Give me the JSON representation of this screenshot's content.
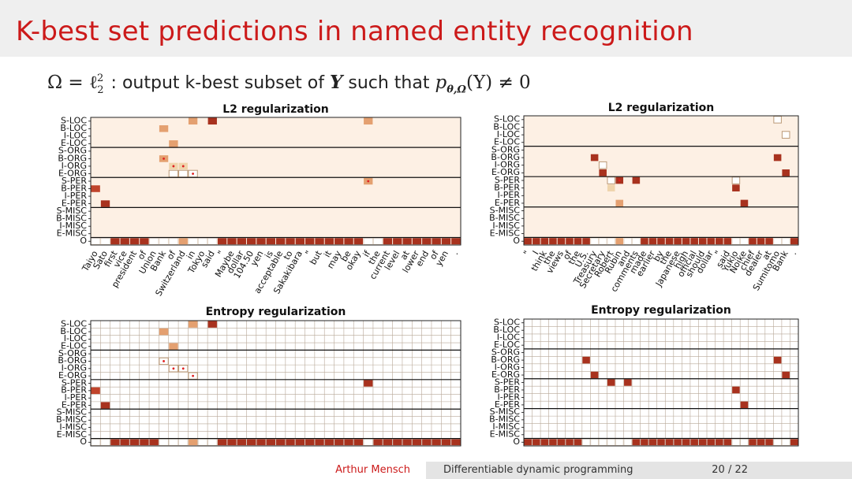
{
  "slide": {
    "title": "K-best set predictions in named entity recognition",
    "formula_lead": "Ω = ℓ",
    "formula_sup": "2",
    "formula_sub": "2",
    "formula_text": ": output k-best subset of ",
    "formula_Y": "Y",
    "formula_mid": " such that ",
    "formula_p": "p",
    "formula_p_sub": "θ,Ω",
    "formula_tail": "(Y) ≠ 0",
    "footer_author": "Arthur Mensch",
    "footer_talk": "Differentiable dynamic programming",
    "footer_page": "20 / 22"
  },
  "colors": {
    "title": "#cc1a1a",
    "cell_bg_dense": "#fdf0e4",
    "dark": "#a8321e",
    "mid": "#c0442c",
    "light": "#e4a070",
    "pale": "#efd4ac",
    "outline": "#bb9977",
    "dot": "#e02020"
  },
  "tags": [
    "S-LOC",
    "B-LOC",
    "I-LOC",
    "E-LOC",
    "S-ORG",
    "B-ORG",
    "I-ORG",
    "E-ORG",
    "S-PER",
    "B-PER",
    "I-PER",
    "E-PER",
    "S-MISC",
    "B-MISC",
    "I-MISC",
    "E-MISC",
    "O"
  ],
  "charts": [
    {
      "title": "L2 regularization",
      "style": "dense",
      "words": [
        "Taiyo",
        "Sato",
        "first",
        "vice",
        "president",
        "of",
        "Union",
        "Bank",
        "of",
        "Switzerland",
        "in",
        "Tokyo",
        "said",
        "\"",
        "Maybe",
        "dollar",
        "104.50",
        "yen",
        "is",
        "acceptable",
        "to",
        "Sakakibara",
        "\"",
        "but",
        "it",
        "may",
        "be",
        "okay",
        "if",
        "the",
        "current",
        "level",
        "at",
        "lower",
        "end",
        "of",
        "yen",
        "."
      ],
      "cells": [
        {
          "r": 0,
          "c": 10,
          "t": "light"
        },
        {
          "r": 0,
          "c": 12,
          "t": "dark"
        },
        {
          "r": 0,
          "c": 28,
          "t": "light"
        },
        {
          "r": 1,
          "c": 7,
          "t": "light"
        },
        {
          "r": 3,
          "c": 8,
          "t": "light"
        },
        {
          "r": 5,
          "c": 7,
          "t": "light",
          "dot": true
        },
        {
          "r": 6,
          "c": 8,
          "t": "pale",
          "dot": true
        },
        {
          "r": 6,
          "c": 9,
          "t": "pale",
          "dot": true
        },
        {
          "r": 7,
          "c": 8,
          "t": "white"
        },
        {
          "r": 7,
          "c": 9,
          "t": "white"
        },
        {
          "r": 7,
          "c": 10,
          "t": "white",
          "dot": true
        },
        {
          "r": 8,
          "c": 28,
          "t": "light",
          "dot": true
        },
        {
          "r": 9,
          "c": 0,
          "t": "mid"
        },
        {
          "r": 11,
          "c": 1,
          "t": "dark"
        }
      ],
      "o_skip": [
        {
          "c": 0,
          "t": "white"
        },
        {
          "c": 1,
          "t": "white"
        },
        {
          "c": 6,
          "t": "white"
        },
        {
          "c": 7,
          "t": "white"
        },
        {
          "c": 8,
          "t": "white"
        },
        {
          "c": 9,
          "t": "light"
        },
        {
          "c": 10,
          "t": "white"
        },
        {
          "c": 11,
          "t": "white"
        },
        {
          "c": 12,
          "t": "white"
        },
        {
          "c": 28,
          "t": "white"
        },
        {
          "c": 29,
          "t": "white"
        }
      ]
    },
    {
      "title": "L2 regularization",
      "style": "dense",
      "words": [
        "\"",
        "I",
        "think",
        "the",
        "views",
        "of",
        "the",
        "U.S.",
        "Treasury",
        "Secretary",
        "Robert",
        "Rubin",
        "and",
        "comments",
        "made",
        "earlier",
        "by",
        "the",
        "Japanese",
        "high",
        "official",
        "should",
        "dollar",
        "\"",
        "said",
        "Yukio",
        "Noike",
        "chief",
        "dealer",
        "at",
        "Sumitomo",
        "Bank",
        "."
      ],
      "cells": [
        {
          "r": 0,
          "c": 30,
          "t": "outline"
        },
        {
          "r": 2,
          "c": 31,
          "t": "outline"
        },
        {
          "r": 5,
          "c": 8,
          "t": "dark"
        },
        {
          "r": 5,
          "c": 30,
          "t": "dark"
        },
        {
          "r": 6,
          "c": 9,
          "t": "outline"
        },
        {
          "r": 7,
          "c": 9,
          "t": "dark"
        },
        {
          "r": 7,
          "c": 31,
          "t": "dark"
        },
        {
          "r": 8,
          "c": 11,
          "t": "dark",
          "dot": true
        },
        {
          "r": 8,
          "c": 10,
          "t": "outline"
        },
        {
          "r": 8,
          "c": 13,
          "t": "dark"
        },
        {
          "r": 8,
          "c": 25,
          "t": "outline"
        },
        {
          "r": 9,
          "c": 10,
          "t": "pale"
        },
        {
          "r": 9,
          "c": 25,
          "t": "dark"
        },
        {
          "r": 11,
          "c": 11,
          "t": "light"
        },
        {
          "r": 11,
          "c": 26,
          "t": "dark"
        }
      ],
      "o_skip": [
        {
          "c": 8,
          "t": "white"
        },
        {
          "c": 9,
          "t": "white"
        },
        {
          "c": 10,
          "t": "white"
        },
        {
          "c": 11,
          "t": "light"
        },
        {
          "c": 12,
          "t": "white"
        },
        {
          "c": 13,
          "t": "white"
        },
        {
          "c": 25,
          "t": "white"
        },
        {
          "c": 26,
          "t": "white"
        },
        {
          "c": 30,
          "t": "white"
        },
        {
          "c": 31,
          "t": "white"
        }
      ]
    },
    {
      "title": "Entropy regularization",
      "style": "grid",
      "cols": 38,
      "cells": [
        {
          "r": 0,
          "c": 10,
          "t": "light"
        },
        {
          "r": 0,
          "c": 12,
          "t": "dark"
        },
        {
          "r": 1,
          "c": 7,
          "t": "light"
        },
        {
          "r": 3,
          "c": 8,
          "t": "light"
        },
        {
          "r": 5,
          "c": 7,
          "t": "white",
          "dot": true
        },
        {
          "r": 6,
          "c": 8,
          "t": "white",
          "dot": true
        },
        {
          "r": 6,
          "c": 9,
          "t": "white",
          "dot": true
        },
        {
          "r": 7,
          "c": 10,
          "t": "white",
          "dot": true
        },
        {
          "r": 8,
          "c": 28,
          "t": "dark"
        },
        {
          "r": 9,
          "c": 0,
          "t": "mid"
        },
        {
          "r": 11,
          "c": 1,
          "t": "dark"
        }
      ],
      "o_skip": [
        {
          "c": 0,
          "t": "white"
        },
        {
          "c": 1,
          "t": "white"
        },
        {
          "c": 7,
          "t": "white"
        },
        {
          "c": 8,
          "t": "white"
        },
        {
          "c": 9,
          "t": "white"
        },
        {
          "c": 10,
          "t": "light"
        },
        {
          "c": 11,
          "t": "white"
        },
        {
          "c": 12,
          "t": "white"
        },
        {
          "c": 28,
          "t": "white"
        }
      ]
    },
    {
      "title": "Entropy regularization",
      "style": "grid",
      "cols": 33,
      "cells": [
        {
          "r": 5,
          "c": 7,
          "t": "dark"
        },
        {
          "r": 5,
          "c": 30,
          "t": "dark"
        },
        {
          "r": 7,
          "c": 8,
          "t": "dark"
        },
        {
          "r": 7,
          "c": 31,
          "t": "dark"
        },
        {
          "r": 8,
          "c": 10,
          "t": "dark"
        },
        {
          "r": 8,
          "c": 12,
          "t": "dark"
        },
        {
          "r": 9,
          "c": 25,
          "t": "dark"
        },
        {
          "r": 11,
          "c": 26,
          "t": "dark"
        }
      ],
      "o_skip": [
        {
          "c": 7,
          "t": "white"
        },
        {
          "c": 8,
          "t": "white"
        },
        {
          "c": 9,
          "t": "white"
        },
        {
          "c": 10,
          "t": "white"
        },
        {
          "c": 11,
          "t": "white"
        },
        {
          "c": 12,
          "t": "white"
        },
        {
          "c": 25,
          "t": "white"
        },
        {
          "c": 26,
          "t": "white"
        },
        {
          "c": 30,
          "t": "white"
        },
        {
          "c": 31,
          "t": "white"
        }
      ]
    }
  ]
}
